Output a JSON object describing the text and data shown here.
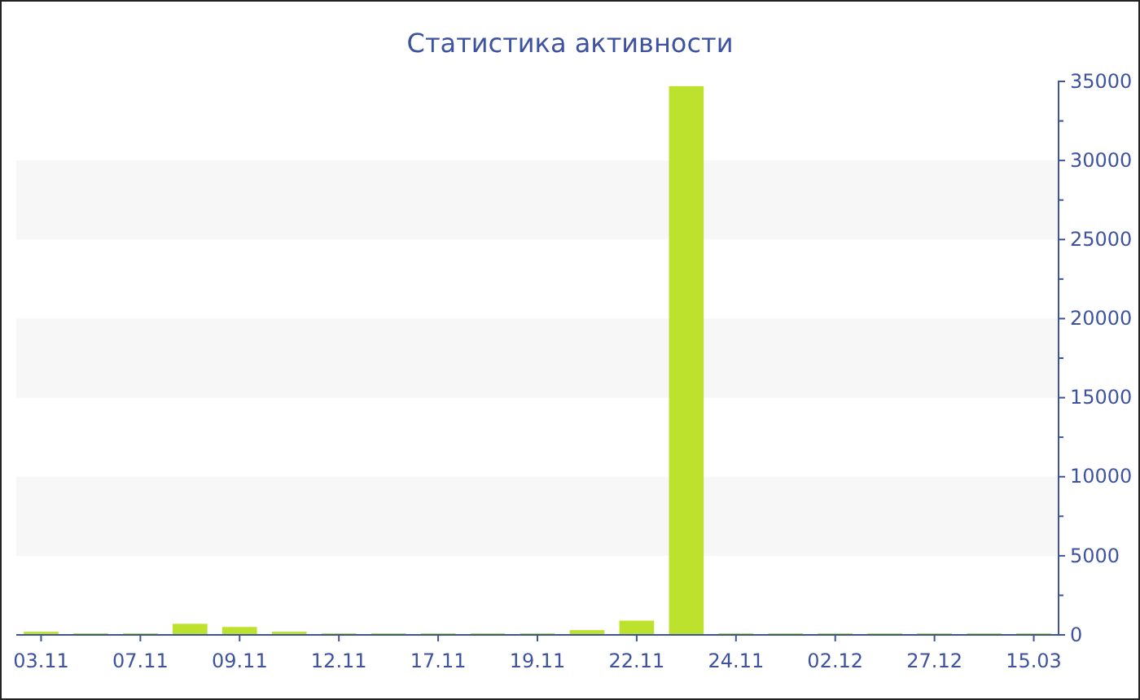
{
  "chart_data": {
    "type": "bar",
    "title": "Статистика активности",
    "categories": [
      "03.11",
      null,
      "07.11",
      null,
      "09.11",
      null,
      "12.11",
      null,
      "17.11",
      null,
      "19.11",
      null,
      "22.11",
      null,
      "24.11",
      null,
      "02.12",
      null,
      "27.12",
      null,
      "15.03"
    ],
    "values": [
      200,
      100,
      100,
      700,
      500,
      200,
      100,
      100,
      100,
      100,
      100,
      300,
      900,
      34700,
      100,
      100,
      100,
      100,
      100,
      100,
      100
    ],
    "color": "#bce22e",
    "ylim": [
      0,
      35000
    ],
    "yticks": [
      0,
      5000,
      10000,
      15000,
      20000,
      25000,
      30000,
      35000
    ],
    "bands": [
      {
        "axis": "y",
        "from": 5000,
        "to": 10000,
        "color": "#f7f7f7"
      },
      {
        "axis": "y",
        "from": 15000,
        "to": 20000,
        "color": "#f7f7f7"
      },
      {
        "axis": "y",
        "from": 25000,
        "to": 30000,
        "color": "#f7f7f7"
      }
    ]
  }
}
